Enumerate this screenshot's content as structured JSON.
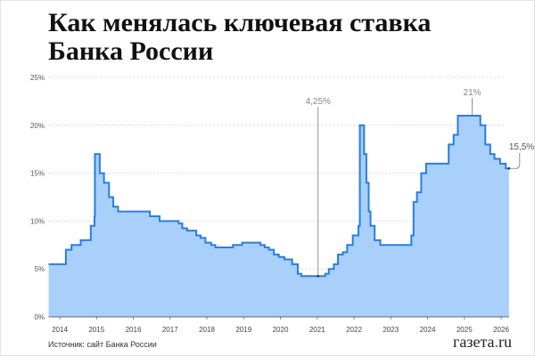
{
  "title_line1": "Как менялась ключевая ставка",
  "title_line2": "Банка России",
  "source": "Источник: сайт Банка России",
  "logo": {
    "pre": "газета",
    "dot": ".",
    "post": "ru"
  },
  "colors": {
    "line": "#2a7de1",
    "fill": "#a8d0fb",
    "grid": "#bbbbbb",
    "logo_dot": "#dd2222"
  },
  "chart_data": {
    "type": "area",
    "step": true,
    "title": "Как менялась ключевая ставка Банка России",
    "xlabel": "",
    "ylabel": "",
    "ylim": [
      0,
      25
    ],
    "xlim": [
      "2013-09-13",
      "2026-03-20"
    ],
    "yticks": [
      "0%",
      "5%",
      "10%",
      "15%",
      "20%",
      "25%"
    ],
    "xticks": [
      "2014",
      "2015",
      "2016",
      "2017",
      "2018",
      "2019",
      "2020",
      "2021",
      "2022",
      "2023",
      "2024",
      "2025",
      "2026"
    ],
    "grid": true,
    "annotations": [
      {
        "label": "4,25%",
        "date": "2021-01-10",
        "value": 4.25
      },
      {
        "label": "21%",
        "date": "2025-03-20",
        "value": 21
      },
      {
        "label": "15,5%",
        "date": "2026-03-20",
        "value": 15.5
      }
    ],
    "points": [
      [
        "2013-09-13",
        5.5
      ],
      [
        "2014-03-03",
        7
      ],
      [
        "2014-04-28",
        7.5
      ],
      [
        "2014-07-28",
        8
      ],
      [
        "2014-11-05",
        9.5
      ],
      [
        "2014-12-12",
        10.5
      ],
      [
        "2014-12-16",
        17
      ],
      [
        "2015-02-02",
        15
      ],
      [
        "2015-03-16",
        14
      ],
      [
        "2015-05-05",
        12.5
      ],
      [
        "2015-06-16",
        11.5
      ],
      [
        "2015-08-03",
        11
      ],
      [
        "2016-06-14",
        10.5
      ],
      [
        "2016-09-19",
        10
      ],
      [
        "2017-03-27",
        9.75
      ],
      [
        "2017-05-02",
        9.25
      ],
      [
        "2017-06-19",
        9
      ],
      [
        "2017-09-18",
        8.5
      ],
      [
        "2017-10-30",
        8.25
      ],
      [
        "2017-12-18",
        7.75
      ],
      [
        "2018-02-12",
        7.5
      ],
      [
        "2018-03-26",
        7.25
      ],
      [
        "2018-09-17",
        7.5
      ],
      [
        "2018-12-17",
        7.75
      ],
      [
        "2019-06-17",
        7.5
      ],
      [
        "2019-07-29",
        7.25
      ],
      [
        "2019-09-09",
        7
      ],
      [
        "2019-10-28",
        6.5
      ],
      [
        "2019-12-16",
        6.25
      ],
      [
        "2020-02-10",
        6
      ],
      [
        "2020-04-27",
        5.5
      ],
      [
        "2020-06-22",
        4.5
      ],
      [
        "2020-07-27",
        4.25
      ],
      [
        "2021-03-22",
        4.5
      ],
      [
        "2021-04-26",
        5
      ],
      [
        "2021-06-15",
        5.5
      ],
      [
        "2021-07-26",
        6.5
      ],
      [
        "2021-09-13",
        6.75
      ],
      [
        "2021-10-25",
        7.5
      ],
      [
        "2021-12-20",
        8.5
      ],
      [
        "2022-02-14",
        9.5
      ],
      [
        "2022-02-28",
        20
      ],
      [
        "2022-04-11",
        17
      ],
      [
        "2022-05-04",
        14
      ],
      [
        "2022-05-27",
        11
      ],
      [
        "2022-06-14",
        9.5
      ],
      [
        "2022-07-25",
        8
      ],
      [
        "2022-09-19",
        7.5
      ],
      [
        "2023-07-24",
        8.5
      ],
      [
        "2023-08-15",
        12
      ],
      [
        "2023-09-18",
        13
      ],
      [
        "2023-10-30",
        15
      ],
      [
        "2023-12-18",
        16
      ],
      [
        "2024-07-29",
        18
      ],
      [
        "2024-09-16",
        19
      ],
      [
        "2024-10-28",
        21
      ],
      [
        "2025-06-09",
        20
      ],
      [
        "2025-07-28",
        18
      ],
      [
        "2025-09-15",
        17
      ],
      [
        "2025-10-27",
        16.5
      ],
      [
        "2025-12-22",
        16
      ],
      [
        "2026-02-16",
        15.5
      ]
    ]
  }
}
